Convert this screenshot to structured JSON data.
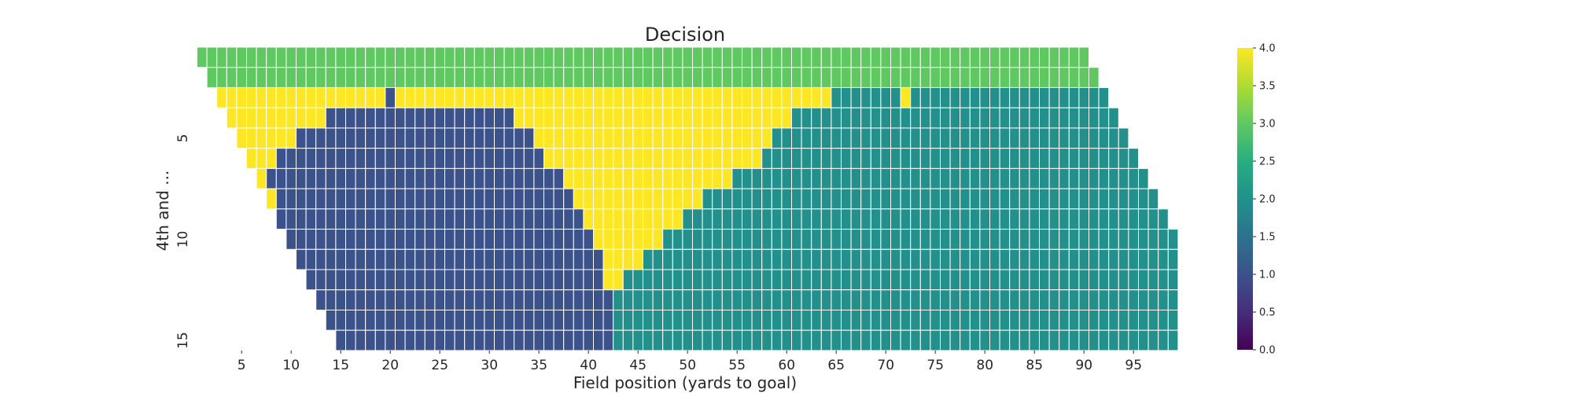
{
  "chart_data": {
    "type": "heatmap",
    "title": "Decision",
    "xlabel": "Field position (yards to goal)",
    "ylabel": "4th and ...",
    "x_start": 1,
    "x_end": 99,
    "y_start": 1,
    "y_end": 15,
    "x_ticks": [
      5,
      10,
      15,
      20,
      25,
      30,
      35,
      40,
      45,
      50,
      55,
      60,
      65,
      70,
      75,
      80,
      85,
      90,
      95
    ],
    "y_ticks": [
      5,
      10,
      15
    ],
    "colorbar": {
      "min": 0.0,
      "max": 4.0,
      "ticks": [
        "0.0",
        "0.5",
        "1.0",
        "1.5",
        "2.0",
        "2.5",
        "3.0",
        "3.5",
        "4.0"
      ],
      "colormap": "viridis"
    },
    "rows": [
      {
        "distance": 1,
        "segments": [
          {
            "from": 1,
            "to": 90,
            "value": 3
          }
        ]
      },
      {
        "distance": 2,
        "segments": [
          {
            "from": 2,
            "to": 91,
            "value": 3
          }
        ]
      },
      {
        "distance": 3,
        "segments": [
          {
            "from": 3,
            "to": 19,
            "value": 4
          },
          {
            "from": 20,
            "to": 20,
            "value": 1
          },
          {
            "from": 21,
            "to": 64,
            "value": 4
          },
          {
            "from": 65,
            "to": 71,
            "value": 2
          },
          {
            "from": 72,
            "to": 72,
            "value": 4
          },
          {
            "from": 73,
            "to": 92,
            "value": 2
          }
        ]
      },
      {
        "distance": 4,
        "segments": [
          {
            "from": 4,
            "to": 13,
            "value": 4
          },
          {
            "from": 14,
            "to": 32,
            "value": 1
          },
          {
            "from": 33,
            "to": 60,
            "value": 4
          },
          {
            "from": 61,
            "to": 93,
            "value": 2
          }
        ]
      },
      {
        "distance": 5,
        "segments": [
          {
            "from": 5,
            "to": 10,
            "value": 4
          },
          {
            "from": 11,
            "to": 34,
            "value": 1
          },
          {
            "from": 35,
            "to": 58,
            "value": 4
          },
          {
            "from": 59,
            "to": 94,
            "value": 2
          }
        ]
      },
      {
        "distance": 6,
        "segments": [
          {
            "from": 6,
            "to": 8,
            "value": 4
          },
          {
            "from": 9,
            "to": 35,
            "value": 1
          },
          {
            "from": 36,
            "to": 57,
            "value": 4
          },
          {
            "from": 58,
            "to": 95,
            "value": 2
          }
        ]
      },
      {
        "distance": 7,
        "segments": [
          {
            "from": 7,
            "to": 7,
            "value": 4
          },
          {
            "from": 8,
            "to": 37,
            "value": 1
          },
          {
            "from": 38,
            "to": 54,
            "value": 4
          },
          {
            "from": 55,
            "to": 96,
            "value": 2
          }
        ]
      },
      {
        "distance": 8,
        "segments": [
          {
            "from": 8,
            "to": 8,
            "value": 4
          },
          {
            "from": 9,
            "to": 38,
            "value": 1
          },
          {
            "from": 39,
            "to": 51,
            "value": 4
          },
          {
            "from": 52,
            "to": 97,
            "value": 2
          }
        ]
      },
      {
        "distance": 9,
        "segments": [
          {
            "from": 9,
            "to": 39,
            "value": 1
          },
          {
            "from": 40,
            "to": 49,
            "value": 4
          },
          {
            "from": 50,
            "to": 98,
            "value": 2
          }
        ]
      },
      {
        "distance": 10,
        "segments": [
          {
            "from": 10,
            "to": 40,
            "value": 1
          },
          {
            "from": 41,
            "to": 47,
            "value": 4
          },
          {
            "from": 48,
            "to": 99,
            "value": 2
          }
        ]
      },
      {
        "distance": 11,
        "segments": [
          {
            "from": 11,
            "to": 41,
            "value": 1
          },
          {
            "from": 42,
            "to": 45,
            "value": 4
          },
          {
            "from": 46,
            "to": 99,
            "value": 2
          }
        ]
      },
      {
        "distance": 12,
        "segments": [
          {
            "from": 12,
            "to": 41,
            "value": 1
          },
          {
            "from": 42,
            "to": 43,
            "value": 4
          },
          {
            "from": 44,
            "to": 99,
            "value": 2
          }
        ]
      },
      {
        "distance": 13,
        "segments": [
          {
            "from": 13,
            "to": 42,
            "value": 1
          },
          {
            "from": 43,
            "to": 99,
            "value": 2
          }
        ]
      },
      {
        "distance": 14,
        "segments": [
          {
            "from": 14,
            "to": 42,
            "value": 1
          },
          {
            "from": 43,
            "to": 99,
            "value": 2
          }
        ]
      },
      {
        "distance": 15,
        "segments": [
          {
            "from": 15,
            "to": 42,
            "value": 1
          },
          {
            "from": 43,
            "to": 99,
            "value": 2
          }
        ]
      }
    ]
  }
}
